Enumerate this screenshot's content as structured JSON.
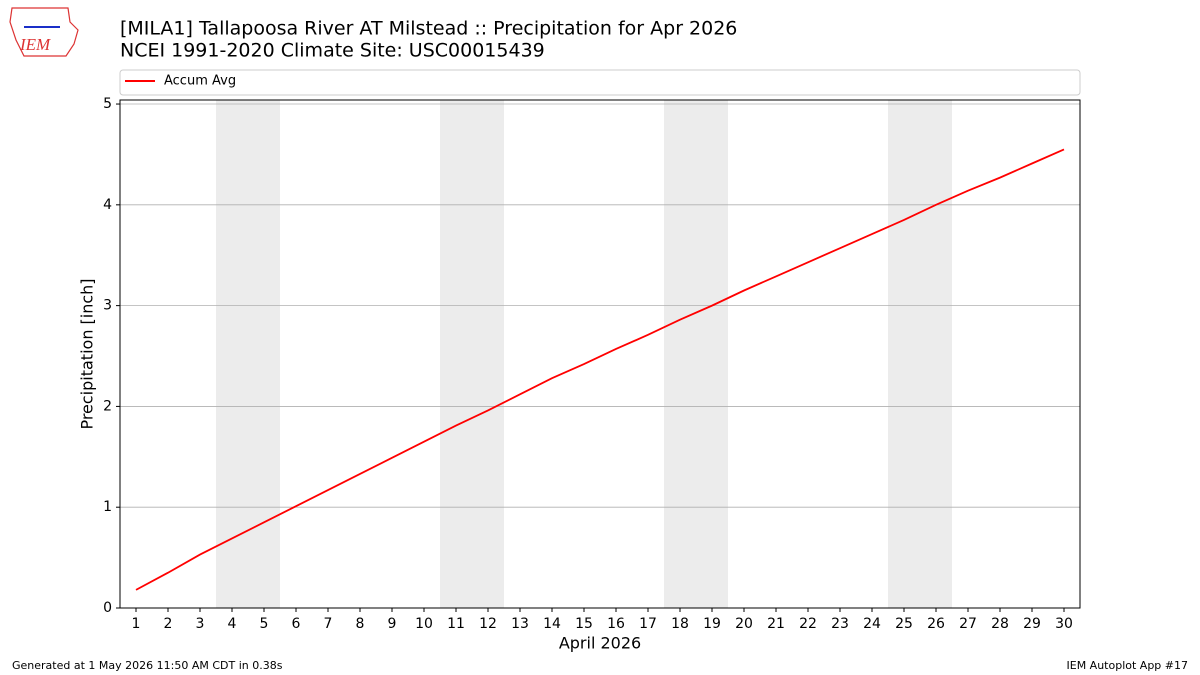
{
  "logo": "IEM",
  "chart_data": {
    "type": "line",
    "title": "[MILA1] Tallapoosa River  AT Milstead :: Precipitation for Apr 2026",
    "subtitle": "NCEI 1991-2020 Climate Site: USC00015439",
    "x_label": "April 2026",
    "y_label": "Precipitation [inch]",
    "x": [
      1,
      2,
      3,
      4,
      5,
      6,
      7,
      8,
      9,
      10,
      11,
      12,
      13,
      14,
      15,
      16,
      17,
      18,
      19,
      20,
      21,
      22,
      23,
      24,
      25,
      26,
      27,
      28,
      29,
      30
    ],
    "series": [
      {
        "name": "Accum Avg",
        "color": "#ff0000",
        "values": [
          0.18,
          0.35,
          0.53,
          0.69,
          0.85,
          1.01,
          1.17,
          1.33,
          1.49,
          1.65,
          1.81,
          1.96,
          2.12,
          2.28,
          2.42,
          2.57,
          2.71,
          2.86,
          3.0,
          3.15,
          3.29,
          3.43,
          3.57,
          3.71,
          3.85,
          4.0,
          4.14,
          4.27,
          4.41,
          4.55
        ]
      }
    ],
    "shaded_spans": [
      [
        3.5,
        5.5
      ],
      [
        10.5,
        12.5
      ],
      [
        17.5,
        19.5
      ],
      [
        24.5,
        26.5
      ]
    ],
    "xlim": [
      0.5,
      30.5
    ],
    "ylim": [
      0,
      5.04
    ],
    "xticks": [
      1,
      2,
      3,
      4,
      5,
      6,
      7,
      8,
      9,
      10,
      11,
      12,
      13,
      14,
      15,
      16,
      17,
      18,
      19,
      20,
      21,
      22,
      23,
      24,
      25,
      26,
      27,
      28,
      29,
      30
    ],
    "yticks": [
      0,
      1,
      2,
      3,
      4,
      5
    ],
    "grid": "y",
    "legend": "top"
  },
  "footer": {
    "left": "Generated at 1 May 2026 11:50 AM CDT in 0.38s",
    "right": "IEM Autoplot App #17"
  }
}
